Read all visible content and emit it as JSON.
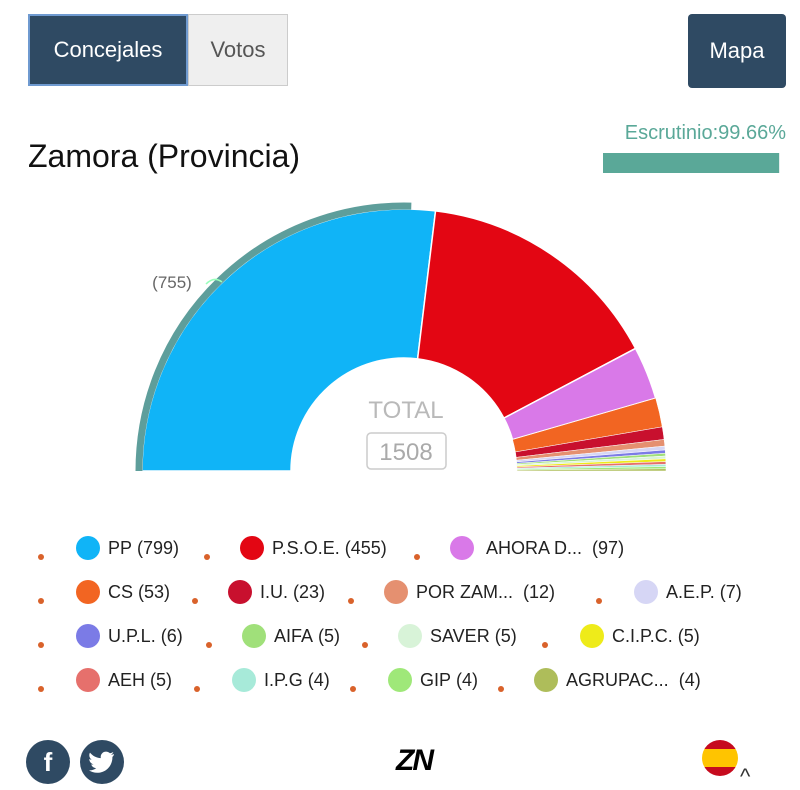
{
  "tabs": [
    {
      "label": "Concejales"
    },
    {
      "label": "Votos"
    }
  ],
  "mapa_label": "Mapa",
  "title": "Zamora (Provincia)",
  "escrutinio": {
    "label": "Escrutinio:99.66%",
    "value": 99.66
  },
  "chart_data": {
    "type": "pie",
    "subtype": "half-donut",
    "title": "Zamora (Provincia)",
    "center_label": "TOTAL",
    "total": "1508",
    "majority_label": "(755)",
    "majority_value": 755,
    "series": [
      {
        "label": "PP",
        "value": 799,
        "color": "#10b4f7"
      },
      {
        "label": "P.S.O.E.",
        "value": 455,
        "color": "#e30613"
      },
      {
        "label": "AHORA D...",
        "value": 97,
        "color": "#d979e8"
      },
      {
        "label": "CS",
        "value": 53,
        "color": "#f26522"
      },
      {
        "label": "I.U.",
        "value": 23,
        "color": "#c8102e"
      },
      {
        "label": "POR ZAM...",
        "value": 12,
        "color": "#e59070"
      },
      {
        "label": "A.E.P.",
        "value": 7,
        "color": "#d6d6f5"
      },
      {
        "label": "U.P.L.",
        "value": 6,
        "color": "#7b7be6"
      },
      {
        "label": "AIFA",
        "value": 5,
        "color": "#a0e07a"
      },
      {
        "label": "SAVER",
        "value": 5,
        "color": "#d8f3d8"
      },
      {
        "label": "C.I.P.C.",
        "value": 5,
        "color": "#eeeb1a"
      },
      {
        "label": "AEH",
        "value": 5,
        "color": "#e6706c"
      },
      {
        "label": "I.P.G",
        "value": 4,
        "color": "#a7ead9"
      },
      {
        "label": "GIP",
        "value": 4,
        "color": "#9fe879"
      },
      {
        "label": "AGRUPAC...",
        "value": 4,
        "color": "#aebd5a"
      }
    ]
  },
  "legend_counts": [
    "(799)",
    "(455)",
    "(97)",
    "(53)",
    "(23)",
    "(12)",
    "(7)",
    "(6)",
    "(5)",
    "(5)",
    "(5)",
    "(5)",
    "(4)",
    "(4)",
    "(4)"
  ],
  "footer": {
    "logo": "ZN",
    "icons": [
      "facebook-icon",
      "twitter-icon",
      "spain-flag-icon"
    ]
  }
}
